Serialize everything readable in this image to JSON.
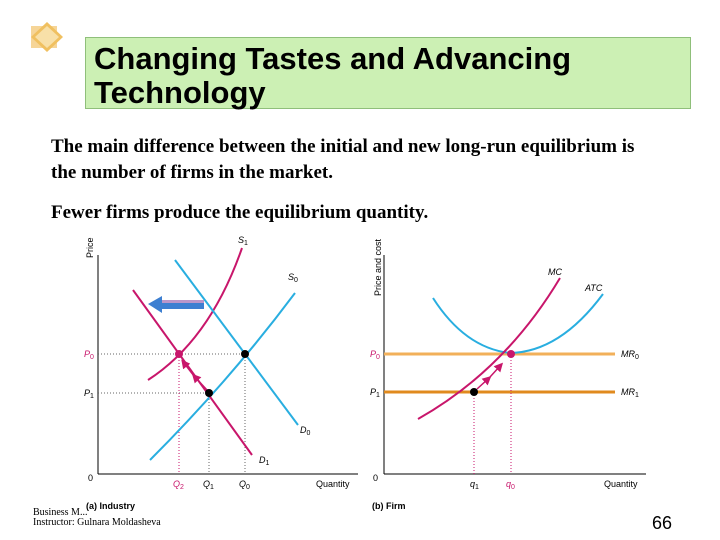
{
  "slide": {
    "title": "Changing Tastes and Advancing Technology",
    "paragraph1": "The main difference between the initial and new long-run equilibrium is the number of firms in the market.",
    "paragraph2": "Fewer firms produce the equilibrium quantity.",
    "page_number": "66",
    "footer_course": "Business M...",
    "footer_instructor": "Instructor: Gulnara Moldasheva"
  },
  "colors": {
    "title_bg": "#ccf0b4",
    "magenta": "#c8166b",
    "cyan": "#29aee0",
    "orange_light": "#f2b05a",
    "orange_dark": "#e08a1e",
    "arrow_blue": "#3d7fd1"
  },
  "industry": {
    "panel_label": "(a) Industry",
    "y_axis_label": "Price",
    "x_axis_label": "Quantity",
    "origin": "0",
    "curve_labels": {
      "s1": "S",
      "s1_sub": "1",
      "s0": "S",
      "s0_sub": "0",
      "d0": "D",
      "d0_sub": "0",
      "d1": "D",
      "d1_sub": "1"
    },
    "price_labels": {
      "p0": "P",
      "p0_sub": "0",
      "p1": "P",
      "p1_sub": "1"
    },
    "quantity_labels": {
      "q2": "Q",
      "q2_sub": "2",
      "q1": "Q",
      "q1_sub": "1",
      "q0": "Q",
      "q0_sub": "0"
    }
  },
  "firm": {
    "panel_label": "(b) Firm",
    "y_axis_label": "Price and cost",
    "x_axis_label": "Quantity",
    "origin": "0",
    "curve_labels": {
      "mc": "MC",
      "atc": "ATC",
      "mr0": "MR",
      "mr0_sub": "0",
      "mr1": "MR",
      "mr1_sub": "1"
    },
    "price_labels": {
      "p0": "P",
      "p0_sub": "0",
      "p1": "P",
      "p1_sub": "1"
    },
    "quantity_labels": {
      "q1": "q",
      "q1_sub": "1",
      "q0": "q",
      "q0_sub": "0"
    }
  }
}
